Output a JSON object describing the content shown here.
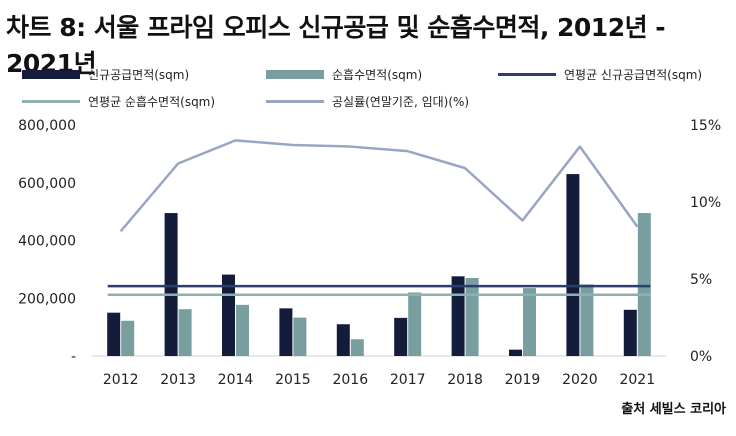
{
  "title": "차트 8: 서울 프라임 오피스 신규공급 및 순흡수면적, 2012년 - 2021년",
  "source": "출처 세빌스 코리아",
  "colors": {
    "supply": "#131d3b",
    "absorption": "#789ea0",
    "avg_supply": "#2a3f6b",
    "avg_absorption": "#8fb0b3",
    "vacancy": "#98a5c4"
  },
  "chart_data": {
    "type": "bar",
    "title": "차트 8: 서울 프라임 오피스 신규공급 및 순흡수면적, 2012년 - 2021년",
    "categories": [
      "2012",
      "2013",
      "2014",
      "2015",
      "2016",
      "2017",
      "2018",
      "2019",
      "2020",
      "2021"
    ],
    "y_left": {
      "ylim": [
        0,
        800000
      ],
      "ticks": [
        "-",
        "200,000",
        "400,000",
        "600,000",
        "800,000"
      ],
      "tick_values": [
        0,
        200000,
        400000,
        600000,
        800000
      ]
    },
    "y_right": {
      "ylim": [
        0,
        15
      ],
      "ticks": [
        "0%",
        "5%",
        "10%",
        "15%"
      ],
      "tick_values": [
        0,
        5,
        10,
        15
      ]
    },
    "series": [
      {
        "name": "신규공급면적(sqm)",
        "kind": "bar",
        "axis": "left",
        "color": "#131d3b",
        "values": [
          150000,
          495000,
          282000,
          165000,
          110000,
          132000,
          276000,
          22000,
          630000,
          160000
        ]
      },
      {
        "name": "순흡수면적(sqm)",
        "kind": "bar",
        "axis": "left",
        "color": "#789ea0",
        "values": [
          122000,
          162000,
          177000,
          133000,
          58000,
          220000,
          270000,
          235000,
          248000,
          495000
        ]
      },
      {
        "name": "연평균 신규공급면적(sqm)",
        "kind": "hline",
        "axis": "left",
        "color": "#2a3f6b",
        "value": 242000
      },
      {
        "name": "연평균 순흡수면적(sqm)",
        "kind": "hline",
        "axis": "left",
        "color": "#8fb0b3",
        "value": 212000
      },
      {
        "name": "공실률(연말기준, 임대)(%)",
        "kind": "line",
        "axis": "right",
        "color": "#98a5c4",
        "values": [
          8.1,
          12.5,
          14.0,
          13.7,
          13.6,
          13.3,
          12.2,
          8.8,
          13.6,
          8.4
        ]
      }
    ],
    "legend_position": "top",
    "grid": false
  }
}
